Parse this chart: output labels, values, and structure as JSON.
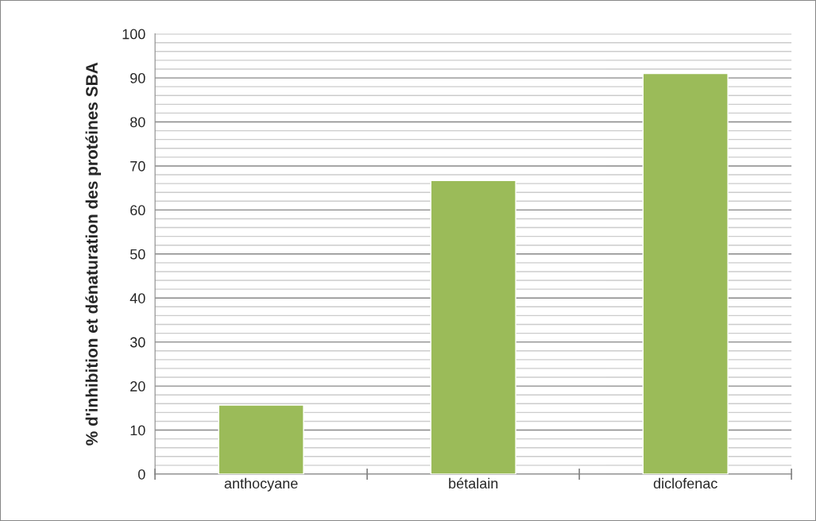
{
  "chart_data": {
    "type": "bar",
    "ylabel": "% d'inhibition et dénaturation des protéines SBA",
    "categories": [
      "anthocyane",
      "bétalain",
      "diclofenac"
    ],
    "values": [
      15.7,
      66.7,
      91.0
    ],
    "color": "#9bbb59",
    "ylim": [
      0,
      100
    ],
    "yticks": [
      0,
      10,
      20,
      30,
      40,
      50,
      60,
      70,
      80,
      90,
      100
    ],
    "grid": "y"
  }
}
